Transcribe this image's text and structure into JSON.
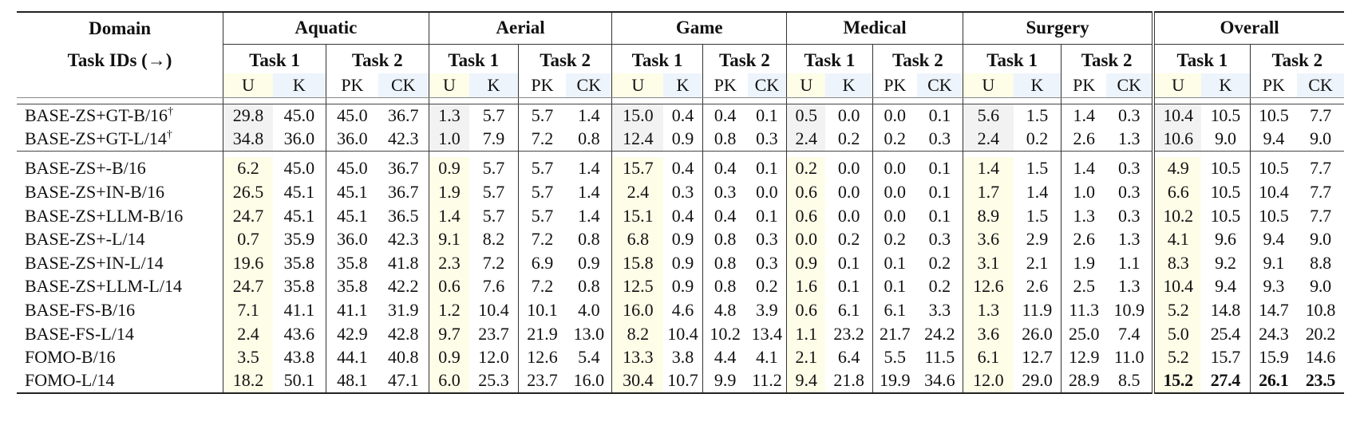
{
  "header": {
    "domain_label": "Domain",
    "task_ids_label": "Task IDs (→)",
    "domains": [
      "Aquatic",
      "Aerial",
      "Game",
      "Medical",
      "Surgery",
      "Overall"
    ],
    "task1": "Task 1",
    "task2": "Task 2",
    "sub": [
      "U",
      "K",
      "PK",
      "CK"
    ]
  },
  "baseline_rows": [
    {
      "label": "BASE-ZS+GT-B/16",
      "sup": "†",
      "values": [
        "29.8",
        "45.0",
        "45.0",
        "36.7",
        "1.3",
        "5.7",
        "5.7",
        "1.4",
        "15.0",
        "0.4",
        "0.4",
        "0.1",
        "0.5",
        "0.0",
        "0.0",
        "0.1",
        "5.6",
        "1.5",
        "1.4",
        "0.3",
        "10.4",
        "10.5",
        "10.5",
        "7.7"
      ]
    },
    {
      "label": "BASE-ZS+GT-L/14",
      "sup": "†",
      "values": [
        "34.8",
        "36.0",
        "36.0",
        "42.3",
        "1.0",
        "7.9",
        "7.2",
        "0.8",
        "12.4",
        "0.9",
        "0.8",
        "0.3",
        "2.4",
        "0.2",
        "0.2",
        "0.3",
        "2.4",
        "0.2",
        "2.6",
        "1.3",
        "10.6",
        "9.0",
        "9.4",
        "9.0"
      ]
    }
  ],
  "rows": [
    {
      "label": "BASE-ZS+-B/16",
      "values": [
        "6.2",
        "45.0",
        "45.0",
        "36.7",
        "0.9",
        "5.7",
        "5.7",
        "1.4",
        "15.7",
        "0.4",
        "0.4",
        "0.1",
        "0.2",
        "0.0",
        "0.0",
        "0.1",
        "1.4",
        "1.5",
        "1.4",
        "0.3",
        "4.9",
        "10.5",
        "10.5",
        "7.7"
      ]
    },
    {
      "label": "BASE-ZS+IN-B/16",
      "values": [
        "26.5",
        "45.1",
        "45.1",
        "36.7",
        "1.9",
        "5.7",
        "5.7",
        "1.4",
        "2.4",
        "0.3",
        "0.3",
        "0.0",
        "0.6",
        "0.0",
        "0.0",
        "0.1",
        "1.7",
        "1.4",
        "1.0",
        "0.3",
        "6.6",
        "10.5",
        "10.4",
        "7.7"
      ]
    },
    {
      "label": "BASE-ZS+LLM-B/16",
      "values": [
        "24.7",
        "45.1",
        "45.1",
        "36.5",
        "1.4",
        "5.7",
        "5.7",
        "1.4",
        "15.1",
        "0.4",
        "0.4",
        "0.1",
        "0.6",
        "0.0",
        "0.0",
        "0.1",
        "8.9",
        "1.5",
        "1.3",
        "0.3",
        "10.2",
        "10.5",
        "10.5",
        "7.7"
      ]
    },
    {
      "label": "BASE-ZS+-L/14",
      "values": [
        "0.7",
        "35.9",
        "36.0",
        "42.3",
        "9.1",
        "8.2",
        "7.2",
        "0.8",
        "6.8",
        "0.9",
        "0.8",
        "0.3",
        "0.0",
        "0.2",
        "0.2",
        "0.3",
        "3.6",
        "2.9",
        "2.6",
        "1.3",
        "4.1",
        "9.6",
        "9.4",
        "9.0"
      ]
    },
    {
      "label": "BASE-ZS+IN-L/14",
      "values": [
        "19.6",
        "35.8",
        "35.8",
        "41.8",
        "2.3",
        "7.2",
        "6.9",
        "0.9",
        "15.8",
        "0.9",
        "0.8",
        "0.3",
        "0.9",
        "0.1",
        "0.1",
        "0.2",
        "3.1",
        "2.1",
        "1.9",
        "1.1",
        "8.3",
        "9.2",
        "9.1",
        "8.8"
      ]
    },
    {
      "label": "BASE-ZS+LLM-L/14",
      "values": [
        "24.7",
        "35.8",
        "35.8",
        "42.2",
        "0.6",
        "7.6",
        "7.2",
        "0.8",
        "12.5",
        "0.9",
        "0.8",
        "0.2",
        "1.6",
        "0.1",
        "0.1",
        "0.2",
        "12.6",
        "2.6",
        "2.5",
        "1.3",
        "10.4",
        "9.4",
        "9.3",
        "9.0"
      ]
    },
    {
      "label": "BASE-FS-B/16",
      "values": [
        "7.1",
        "41.1",
        "41.1",
        "31.9",
        "1.2",
        "10.4",
        "10.1",
        "4.0",
        "16.0",
        "4.6",
        "4.8",
        "3.9",
        "0.6",
        "6.1",
        "6.1",
        "3.3",
        "1.3",
        "11.9",
        "11.3",
        "10.9",
        "5.2",
        "14.8",
        "14.7",
        "10.8"
      ]
    },
    {
      "label": "BASE-FS-L/14",
      "values": [
        "2.4",
        "43.6",
        "42.9",
        "42.8",
        "9.7",
        "23.7",
        "21.9",
        "13.0",
        "8.2",
        "10.4",
        "10.2",
        "13.4",
        "1.1",
        "23.2",
        "21.7",
        "24.2",
        "3.6",
        "26.0",
        "25.0",
        "7.4",
        "5.0",
        "25.4",
        "24.3",
        "20.2"
      ]
    },
    {
      "label": "FOMO-B/16",
      "values": [
        "3.5",
        "43.8",
        "44.1",
        "40.8",
        "0.9",
        "12.0",
        "12.6",
        "5.4",
        "13.3",
        "3.8",
        "4.4",
        "4.1",
        "2.1",
        "6.4",
        "5.5",
        "11.5",
        "6.1",
        "12.7",
        "12.9",
        "11.0",
        "5.2",
        "15.7",
        "15.9",
        "14.6"
      ]
    },
    {
      "label": "FOMO-L/14",
      "values": [
        "18.2",
        "50.1",
        "48.1",
        "47.1",
        "6.0",
        "25.3",
        "23.7",
        "16.0",
        "30.4",
        "10.7",
        "9.9",
        "11.2",
        "9.4",
        "21.8",
        "19.9",
        "34.6",
        "12.0",
        "29.0",
        "28.9",
        "8.5",
        "15.2",
        "27.4",
        "26.1",
        "23.5"
      ],
      "bold_overall": true
    }
  ]
}
